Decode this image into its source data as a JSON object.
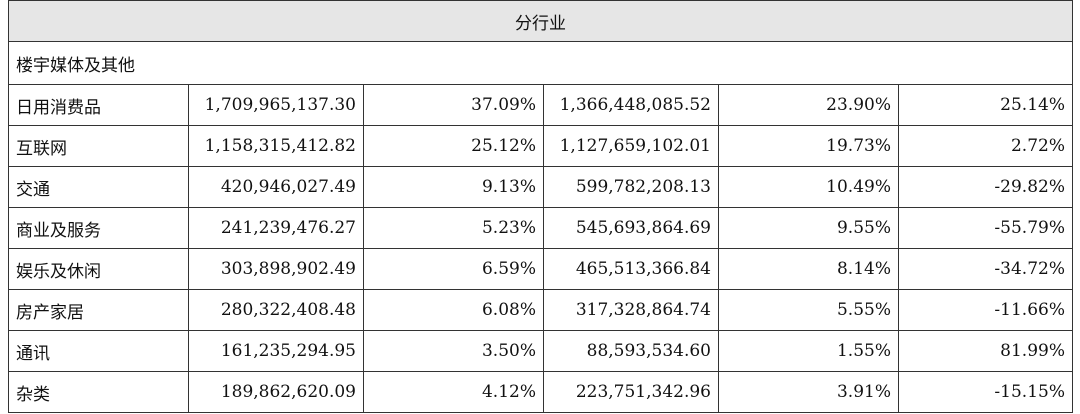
{
  "table": {
    "header": "分行业",
    "section": "楼宇媒体及其他",
    "rows": [
      {
        "name": "日用消费品",
        "revenue_current": "1,709,965,137.30",
        "share_current": "37.09%",
        "revenue_prior": "1,366,448,085.52",
        "share_prior": "23.90%",
        "change": "25.14%"
      },
      {
        "name": "互联网",
        "revenue_current": "1,158,315,412.82",
        "share_current": "25.12%",
        "revenue_prior": "1,127,659,102.01",
        "share_prior": "19.73%",
        "change": "2.72%"
      },
      {
        "name": "交通",
        "revenue_current": "420,946,027.49",
        "share_current": "9.13%",
        "revenue_prior": "599,782,208.13",
        "share_prior": "10.49%",
        "change": "-29.82%"
      },
      {
        "name": "商业及服务",
        "revenue_current": "241,239,476.27",
        "share_current": "5.23%",
        "revenue_prior": "545,693,864.69",
        "share_prior": "9.55%",
        "change": "-55.79%"
      },
      {
        "name": "娱乐及休闲",
        "revenue_current": "303,898,902.49",
        "share_current": "6.59%",
        "revenue_prior": "465,513,366.84",
        "share_prior": "8.14%",
        "change": "-34.72%"
      },
      {
        "name": "房产家居",
        "revenue_current": "280,322,408.48",
        "share_current": "6.08%",
        "revenue_prior": "317,328,864.74",
        "share_prior": "5.55%",
        "change": "-11.66%"
      },
      {
        "name": "通讯",
        "revenue_current": "161,235,294.95",
        "share_current": "3.50%",
        "revenue_prior": "88,593,534.60",
        "share_prior": "1.55%",
        "change": "81.99%"
      },
      {
        "name": "杂类",
        "revenue_current": "189,862,620.09",
        "share_current": "4.12%",
        "revenue_prior": "223,751,342.96",
        "share_prior": "3.91%",
        "change": "-15.15%"
      }
    ]
  }
}
